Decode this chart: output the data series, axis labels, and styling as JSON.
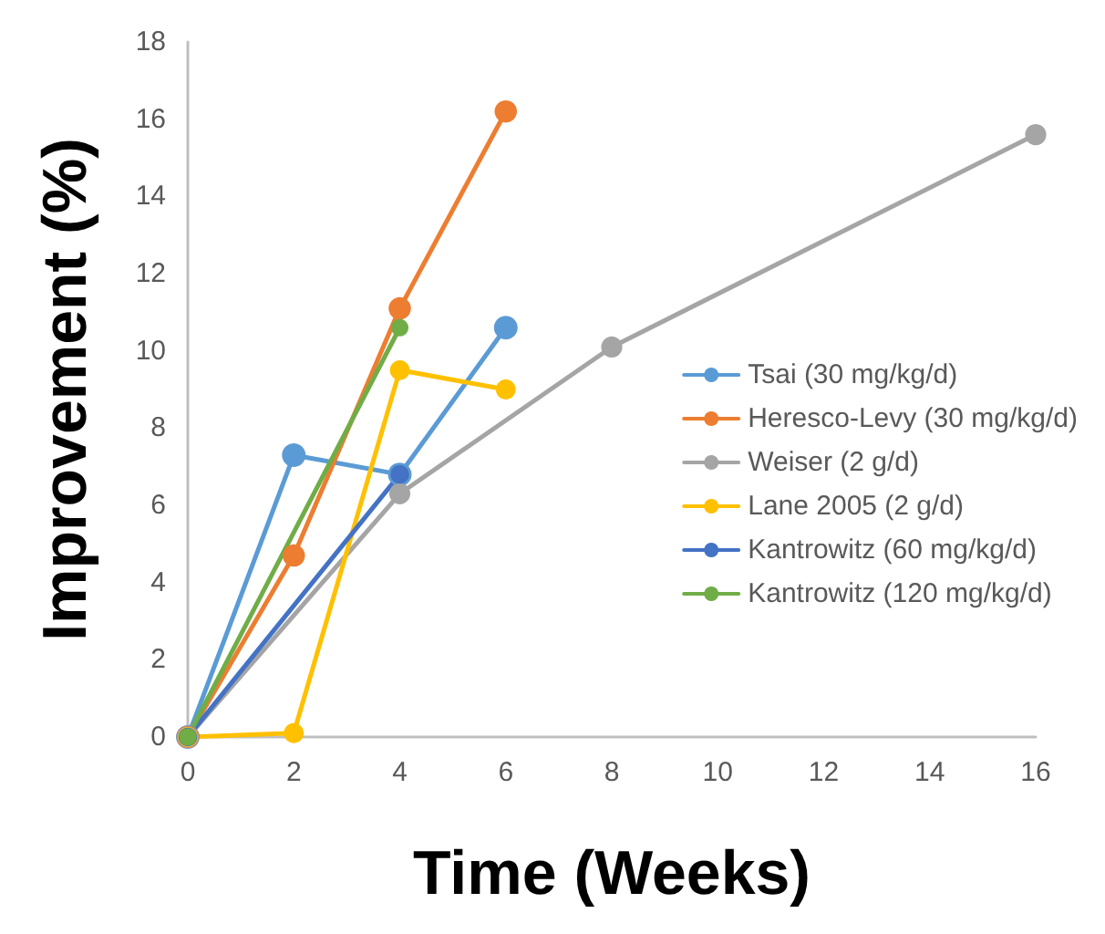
{
  "chart_data": {
    "type": "line",
    "xlabel": "Time (Weeks)",
    "ylabel": "Improvement (%)",
    "xlim": [
      0,
      16
    ],
    "xticks": [
      0,
      2,
      4,
      6,
      8,
      10,
      12,
      14,
      16
    ],
    "ylim": [
      0,
      18
    ],
    "yticks": [
      0,
      2,
      4,
      6,
      8,
      10,
      12,
      14,
      16,
      18
    ],
    "grid": false,
    "legend": "right",
    "marker": "circle",
    "line_style": "solid",
    "series": [
      {
        "name": "Tsai (30 mg/kg/d)",
        "color": "#5b9bd5",
        "x": [
          0,
          2,
          4,
          6
        ],
        "values": [
          0,
          7.3,
          6.8,
          10.6
        ]
      },
      {
        "name": "Heresco-Levy (30 mg/kg/d)",
        "color": "#ed7d31",
        "x": [
          0,
          2,
          4,
          6
        ],
        "values": [
          0,
          4.7,
          11.1,
          16.2
        ]
      },
      {
        "name": "Weiser (2 g/d)",
        "color": "#a5a5a5",
        "x": [
          0,
          4,
          8,
          16
        ],
        "values": [
          0,
          6.3,
          10.1,
          15.6
        ]
      },
      {
        "name": "Lane 2005 (2 g/d)",
        "color": "#ffc000",
        "x": [
          0,
          2,
          4,
          6
        ],
        "values": [
          0,
          0.1,
          9.5,
          9.0
        ]
      },
      {
        "name": "Kantrowitz (60 mg/kg/d)",
        "color": "#4472c4",
        "x": [
          0,
          4
        ],
        "values": [
          0,
          6.8
        ]
      },
      {
        "name": "Kantrowitz (120 mg/kg/d)",
        "color": "#70ad47",
        "x": [
          0,
          4
        ],
        "values": [
          0,
          10.6
        ]
      }
    ]
  }
}
